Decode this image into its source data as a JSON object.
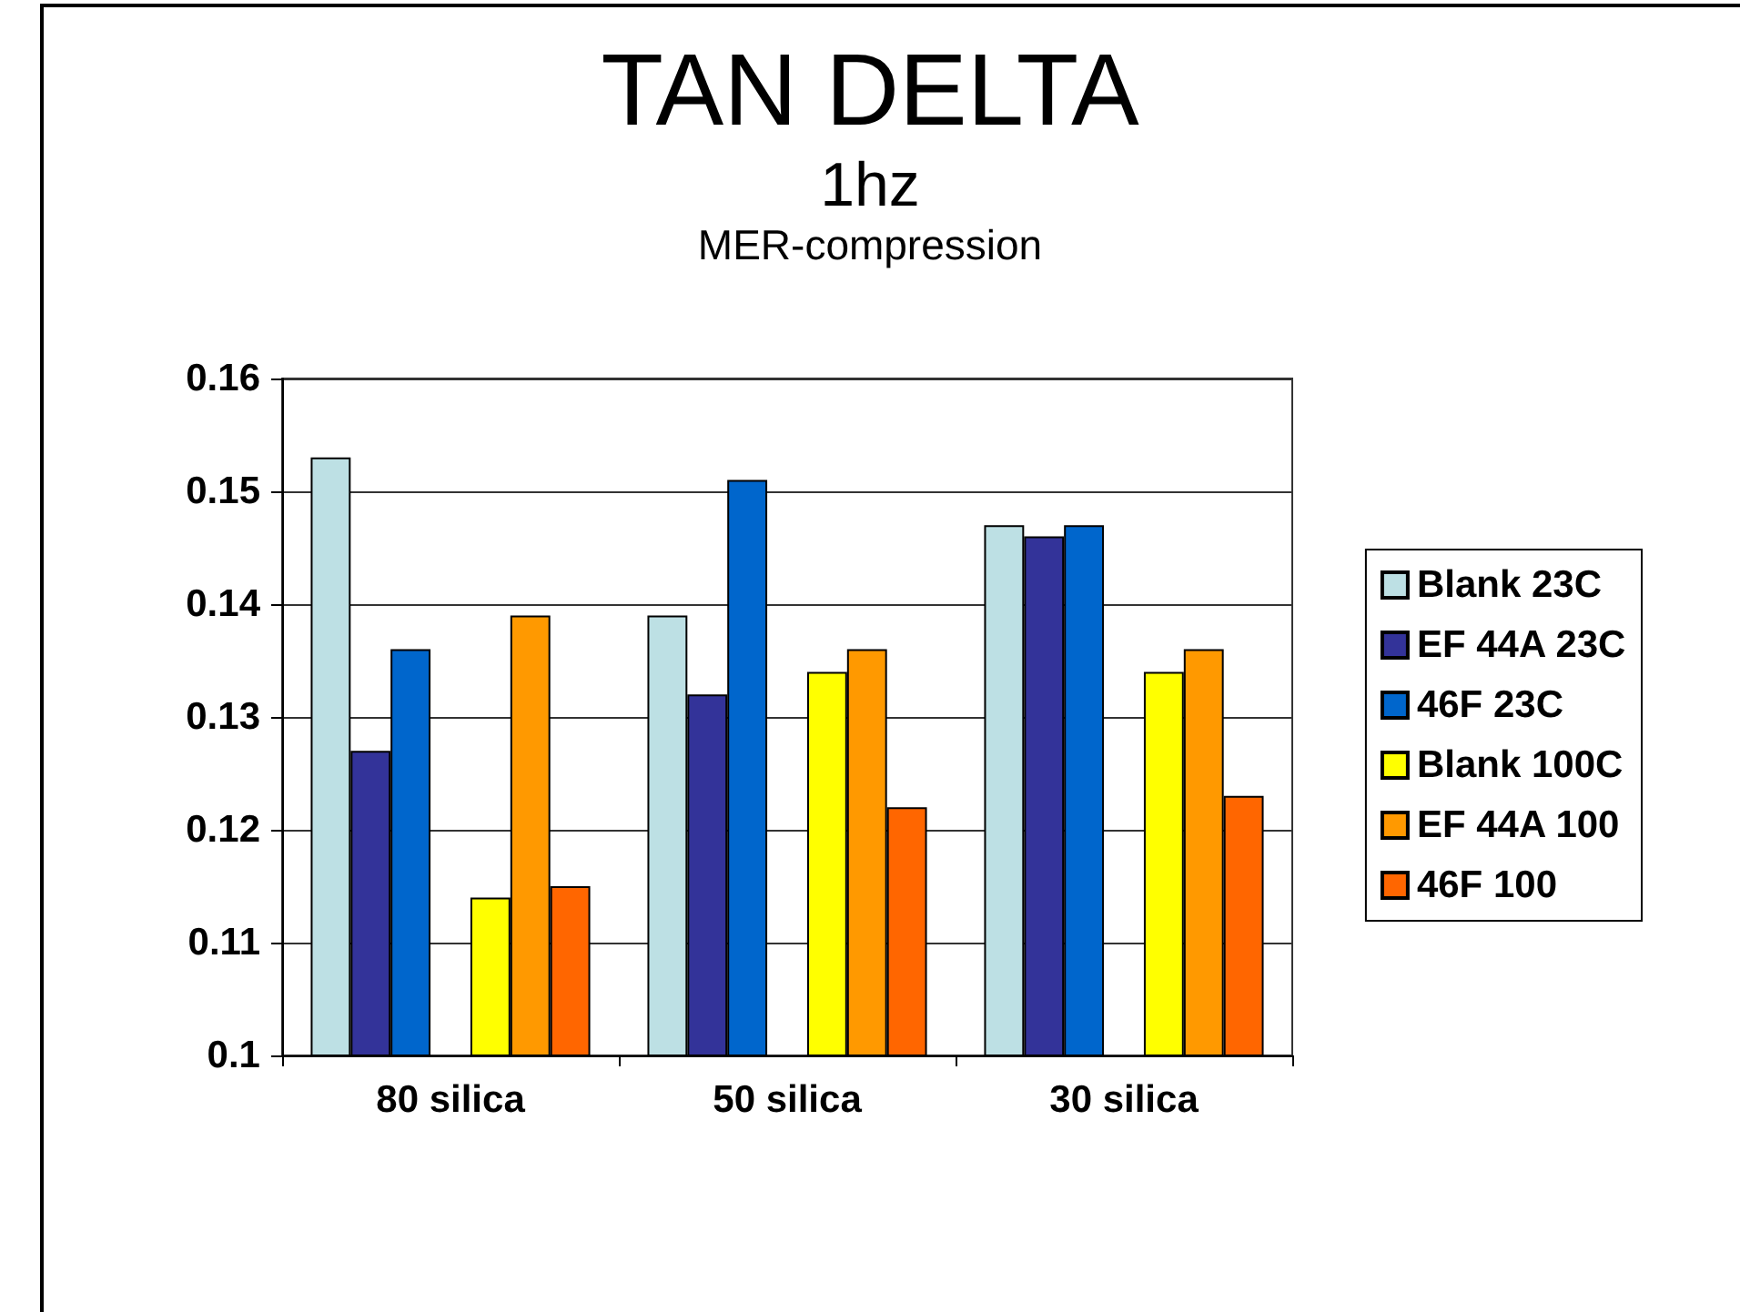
{
  "chart_data": {
    "type": "bar",
    "title": "TAN DELTA",
    "subtitle": "1hz\nMER-compression",
    "categories": [
      "80 silica",
      "50 silica",
      "30 silica"
    ],
    "series": [
      {
        "name": "Blank 23C",
        "color": "#bde0e4",
        "values": [
          0.153,
          0.139,
          0.147
        ]
      },
      {
        "name": "EF 44A 23C",
        "color": "#333399",
        "values": [
          0.127,
          0.132,
          0.146
        ]
      },
      {
        "name": "46F 23C",
        "color": "#0066cc",
        "values": [
          0.136,
          0.151,
          0.147
        ]
      },
      {
        "values": [
          null,
          null,
          null
        ]
      },
      {
        "name": "Blank 100C",
        "color": "#ffff00",
        "values": [
          0.114,
          0.134,
          0.134
        ]
      },
      {
        "name": "EF 44A 100",
        "color": "#ff9900",
        "values": [
          0.139,
          0.136,
          0.136
        ]
      },
      {
        "name": "46F 100",
        "color": "#ff6600",
        "values": [
          0.115,
          0.122,
          0.123
        ]
      }
    ],
    "ylim": [
      0.1,
      0.16
    ],
    "yticks": [
      0.1,
      0.11,
      0.12,
      0.13,
      0.14,
      0.15,
      0.16
    ],
    "grid": "y",
    "legend": "right"
  }
}
